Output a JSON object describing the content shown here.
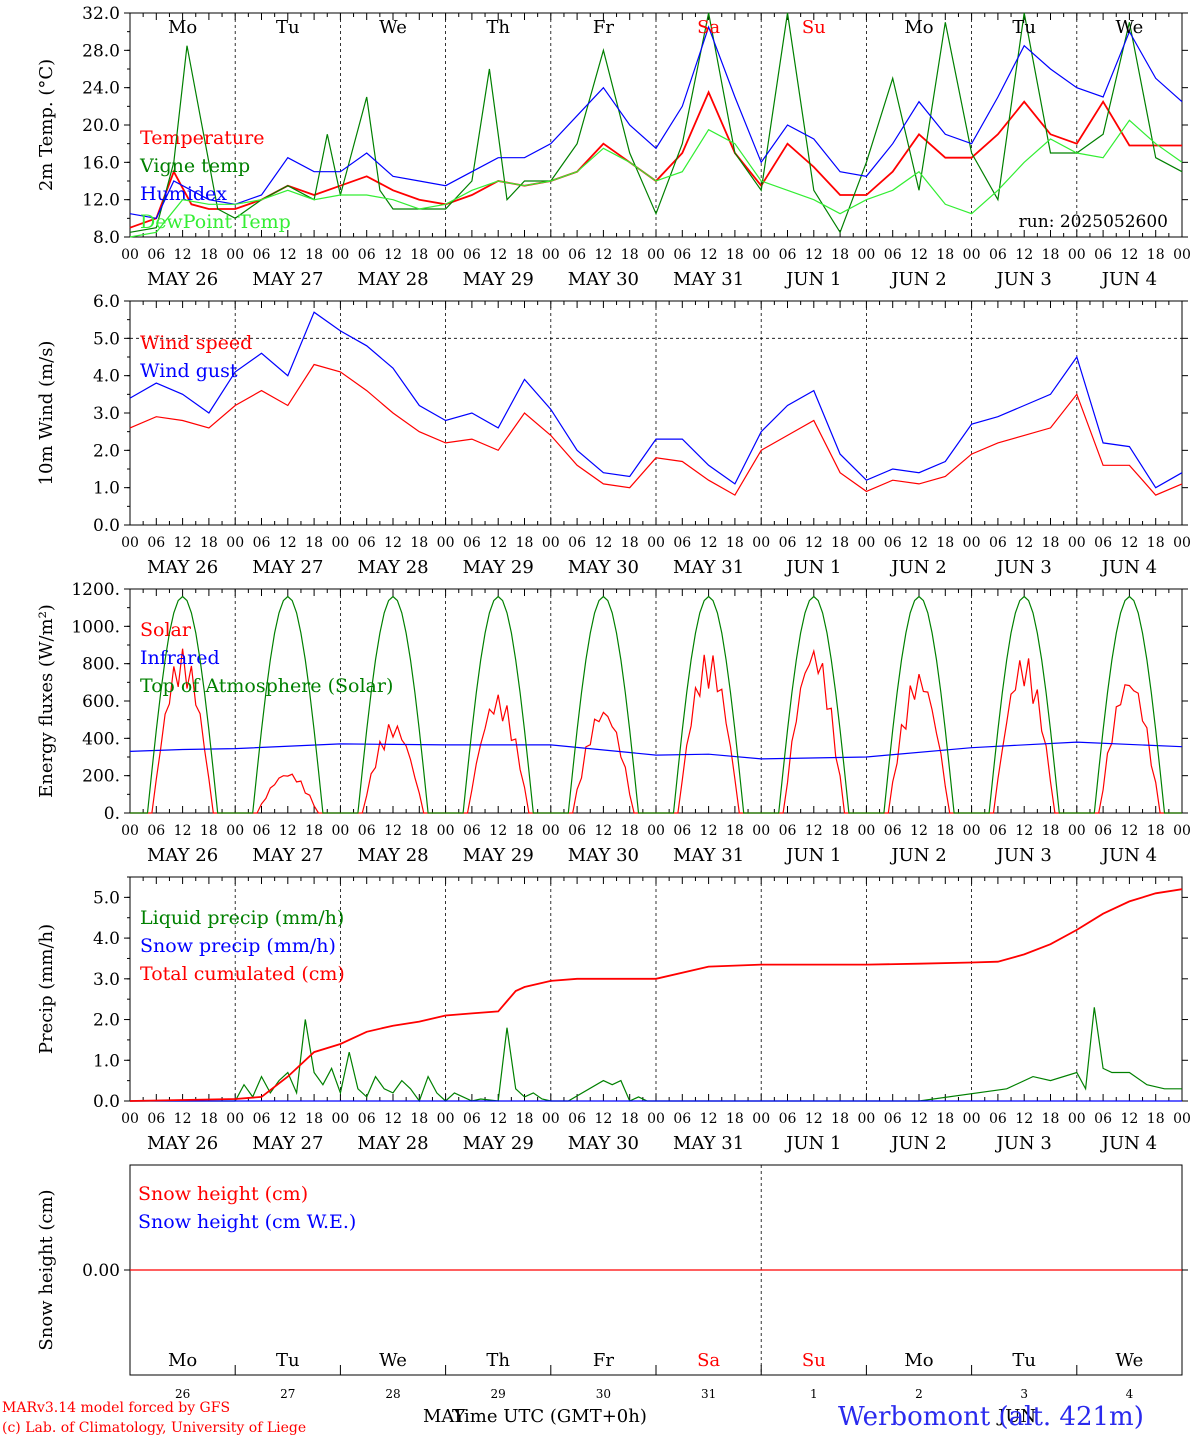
{
  "run_label": "run: 2025052600",
  "time_axis_title": "Time UTC (GMT+0h)",
  "station": "Werbomont (alt. 421m)",
  "credits": [
    "MARv3.14 model forced by GFS",
    "(c) Lab. of Climatology, University of Liege"
  ],
  "hour_ticks": [
    "00",
    "06",
    "12",
    "18"
  ],
  "date_labels": [
    "MAY 26",
    "MAY 27",
    "MAY 28",
    "MAY 29",
    "MAY 30",
    "MAY 31",
    "JUN  1",
    "JUN  2",
    "JUN  3",
    "JUN  4"
  ],
  "weekdays": [
    {
      "label": "Mo",
      "color": "#000000"
    },
    {
      "label": "Tu",
      "color": "#000000"
    },
    {
      "label": "We",
      "color": "#000000"
    },
    {
      "label": "Th",
      "color": "#000000"
    },
    {
      "label": "Fr",
      "color": "#000000"
    },
    {
      "label": "Sa",
      "color": "#ff0000"
    },
    {
      "label": "Su",
      "color": "#ff0000"
    },
    {
      "label": "Mo",
      "color": "#000000"
    },
    {
      "label": "Tu",
      "color": "#000000"
    },
    {
      "label": "We",
      "color": "#000000"
    }
  ],
  "day_numbers": [
    "26",
    "27",
    "28",
    "29",
    "30",
    "31",
    "1",
    "2",
    "3",
    "4"
  ],
  "month_labels": {
    "first": "MAY",
    "second": "JUN"
  },
  "chart_data": [
    {
      "type": "line",
      "id": "temperature",
      "ylabel": "2m Temp. (°C)",
      "ylim": [
        8,
        32
      ],
      "yticks": [
        "8.0",
        "12.0",
        "16.0",
        "20.0",
        "24.0",
        "28.0",
        "32.0"
      ],
      "x_unit": "hours since MAY 26 00 UTC",
      "series": [
        {
          "name": "Temperature",
          "color": "#ff0000",
          "x": [
            0,
            6,
            10,
            14,
            18,
            24,
            30,
            36,
            42,
            48,
            54,
            60,
            66,
            72,
            78,
            84,
            90,
            96,
            102,
            108,
            114,
            120,
            126,
            132,
            138,
            144,
            150,
            156,
            162,
            168,
            174,
            180,
            186,
            192,
            198,
            204,
            210,
            216,
            222,
            228,
            234,
            240
          ],
          "y": [
            9,
            10,
            15,
            11.5,
            11,
            11,
            12,
            13.5,
            12.5,
            13.5,
            14.5,
            13,
            12,
            11.5,
            12.5,
            14,
            13.5,
            14,
            15,
            18,
            16,
            14,
            17,
            23.5,
            17,
            13.5,
            18,
            15.5,
            12.5,
            12.5,
            15,
            19,
            16.5,
            16.5,
            19,
            22.5,
            19,
            18,
            22.5,
            17.8,
            17.8,
            17.8
          ]
        },
        {
          "name": "Vigne temp",
          "color": "#008000",
          "x": [
            0,
            6,
            10,
            13,
            16,
            20,
            24,
            30,
            36,
            42,
            45,
            48,
            54,
            57,
            60,
            66,
            72,
            78,
            82,
            86,
            90,
            96,
            102,
            108,
            114,
            120,
            126,
            132,
            138,
            144,
            150,
            156,
            162,
            168,
            174,
            180,
            186,
            192,
            198,
            204,
            210,
            216,
            222,
            228,
            234,
            240
          ],
          "y": [
            8.5,
            9,
            16,
            28.5,
            21,
            11,
            10,
            12,
            13.5,
            12,
            19,
            12.5,
            23,
            13,
            11,
            11,
            11,
            14,
            26,
            12,
            14,
            14,
            18,
            28,
            17,
            10.5,
            18,
            32,
            17,
            13,
            32,
            13,
            8.5,
            16,
            25,
            13,
            31,
            17,
            12,
            32,
            17,
            17,
            19,
            31,
            16.5,
            15
          ]
        },
        {
          "name": "Humidex",
          "color": "#0000ff",
          "x": [
            0,
            6,
            10,
            14,
            18,
            24,
            30,
            36,
            42,
            48,
            54,
            60,
            66,
            72,
            78,
            84,
            90,
            96,
            102,
            108,
            114,
            120,
            126,
            132,
            138,
            144,
            150,
            156,
            162,
            168,
            174,
            180,
            186,
            192,
            198,
            204,
            210,
            216,
            222,
            228,
            234,
            240
          ],
          "y": [
            10.5,
            10,
            14,
            13,
            12,
            11.5,
            12.5,
            16.5,
            15,
            15,
            17,
            14.5,
            14,
            13.5,
            15,
            16.5,
            16.5,
            18,
            21,
            24,
            20,
            17.5,
            22,
            30.5,
            23,
            16,
            20,
            18.5,
            15,
            14.5,
            18,
            22.5,
            19,
            18,
            23,
            28.5,
            26,
            24,
            23,
            30,
            25,
            22.5
          ]
        },
        {
          "name": "DewPoint Temp",
          "color": "#33ee33",
          "x": [
            0,
            6,
            12,
            18,
            24,
            30,
            36,
            42,
            48,
            54,
            60,
            66,
            72,
            78,
            84,
            90,
            96,
            102,
            108,
            114,
            120,
            126,
            132,
            138,
            144,
            150,
            156,
            162,
            168,
            174,
            180,
            186,
            192,
            198,
            204,
            210,
            216,
            222,
            228,
            234,
            240
          ],
          "y": [
            8,
            8.5,
            12,
            11.5,
            11.5,
            12,
            13,
            12,
            12.5,
            12.5,
            12,
            11,
            11.5,
            13,
            14,
            13.5,
            14,
            15,
            17.5,
            16,
            14,
            15,
            19.5,
            18,
            14,
            13,
            12,
            10.5,
            12,
            13,
            15,
            11.5,
            10.5,
            13,
            16,
            18.5,
            17,
            16.5,
            20.5,
            18,
            16
          ]
        }
      ]
    },
    {
      "type": "line",
      "id": "wind",
      "ylabel": "10m Wind (m/s)",
      "ylim": [
        0,
        6
      ],
      "yticks": [
        "0.0",
        "1.0",
        "2.0",
        "3.0",
        "4.0",
        "5.0",
        "6.0"
      ],
      "x_unit": "hours since MAY 26 00 UTC",
      "series": [
        {
          "name": "Wind speed",
          "color": "#ff0000",
          "x": [
            0,
            6,
            12,
            18,
            24,
            30,
            36,
            42,
            48,
            54,
            60,
            66,
            72,
            78,
            84,
            90,
            96,
            102,
            108,
            114,
            120,
            126,
            132,
            138,
            144,
            150,
            156,
            162,
            168,
            174,
            180,
            186,
            192,
            198,
            204,
            210,
            216,
            222,
            228,
            234,
            240
          ],
          "y": [
            2.6,
            2.9,
            2.8,
            2.6,
            3.2,
            3.6,
            3.2,
            4.3,
            4.1,
            3.6,
            3.0,
            2.5,
            2.2,
            2.3,
            2.0,
            3.0,
            2.4,
            1.6,
            1.1,
            1.0,
            1.8,
            1.7,
            1.2,
            0.8,
            2.0,
            2.4,
            2.8,
            1.4,
            0.9,
            1.2,
            1.1,
            1.3,
            1.9,
            2.2,
            2.4,
            2.6,
            3.5,
            1.6,
            1.6,
            0.8,
            1.1
          ]
        },
        {
          "name": "Wind gust",
          "color": "#0000ff",
          "x": [
            0,
            6,
            12,
            18,
            24,
            30,
            36,
            42,
            48,
            54,
            60,
            66,
            72,
            78,
            84,
            90,
            96,
            102,
            108,
            114,
            120,
            126,
            132,
            138,
            144,
            150,
            156,
            162,
            168,
            174,
            180,
            186,
            192,
            198,
            204,
            210,
            216,
            222,
            228,
            234,
            240
          ],
          "y": [
            3.4,
            3.8,
            3.5,
            3.0,
            4.1,
            4.6,
            4.0,
            5.7,
            5.2,
            4.8,
            4.2,
            3.2,
            2.8,
            3.0,
            2.6,
            3.9,
            3.1,
            2.0,
            1.4,
            1.3,
            2.3,
            2.3,
            1.6,
            1.1,
            2.5,
            3.2,
            3.6,
            1.9,
            1.2,
            1.5,
            1.4,
            1.7,
            2.7,
            2.9,
            3.2,
            3.5,
            4.5,
            2.2,
            2.1,
            1.0,
            1.4
          ]
        }
      ]
    },
    {
      "type": "line",
      "id": "energy",
      "ylabel": "Energy fluxes (W/m²)",
      "ylim": [
        0,
        1200
      ],
      "yticks": [
        "0.",
        "200.",
        "400.",
        "600.",
        "800.",
        "1000.",
        "1200."
      ],
      "x_unit": "hours since MAY 26 00 UTC",
      "toa_peak": 1160,
      "solar_peaks": [
        880,
        220,
        490,
        640,
        570,
        870,
        900,
        760,
        850,
        740
      ],
      "series": [
        {
          "name": "Solar",
          "color": "#ff0000"
        },
        {
          "name": "Infrared",
          "color": "#0000ff",
          "x": [
            0,
            12,
            24,
            48,
            72,
            96,
            120,
            132,
            144,
            168,
            192,
            216,
            240
          ],
          "y": [
            330,
            340,
            345,
            370,
            365,
            365,
            310,
            315,
            290,
            300,
            350,
            380,
            355
          ]
        },
        {
          "name": "Top of Atmosphere (Solar)",
          "color": "#008000"
        }
      ]
    },
    {
      "type": "line",
      "id": "precip",
      "ylabel": "Precip (mm/h)",
      "ylim": [
        0,
        5.5
      ],
      "yticks": [
        "0.0",
        "1.0",
        "2.0",
        "3.0",
        "4.0",
        "5.0"
      ],
      "x_unit": "hours since MAY 26 00 UTC",
      "series": [
        {
          "name": "Liquid precip (mm/h)",
          "color": "#008000",
          "x": [
            0,
            24,
            26,
            28,
            30,
            32,
            34,
            36,
            38,
            40,
            42,
            44,
            46,
            48,
            50,
            52,
            54,
            56,
            58,
            60,
            62,
            64,
            66,
            68,
            70,
            72,
            74,
            76,
            78,
            80,
            84,
            86,
            88,
            90,
            92,
            94,
            96,
            100,
            108,
            110,
            112,
            114,
            116,
            118,
            120,
            130,
            140,
            150,
            160,
            170,
            180,
            200,
            206,
            210,
            216,
            218,
            220,
            222,
            224,
            228,
            232,
            236,
            240
          ],
          "y": [
            0,
            0,
            0.4,
            0.1,
            0.6,
            0.2,
            0.5,
            0.7,
            0.2,
            2.0,
            0.7,
            0.4,
            0.8,
            0.2,
            1.2,
            0.3,
            0.1,
            0.6,
            0.3,
            0.2,
            0.5,
            0.3,
            0,
            0.6,
            0.2,
            0,
            0.2,
            0.1,
            0,
            0.05,
            0,
            1.8,
            0.3,
            0.1,
            0.2,
            0.05,
            0,
            0,
            0.5,
            0.4,
            0.5,
            0,
            0.1,
            0,
            0,
            0,
            0,
            0,
            0,
            0,
            0,
            0.3,
            0.6,
            0.5,
            0.7,
            0.3,
            2.3,
            0.8,
            0.7,
            0.7,
            0.4,
            0.3,
            0.3
          ]
        },
        {
          "name": "Snow precip (mm/h)",
          "color": "#0000ff",
          "x": [
            0,
            240
          ],
          "y": [
            0,
            0
          ]
        },
        {
          "name": "Total cumulated (cm)",
          "color": "#ff0000",
          "x": [
            0,
            24,
            30,
            36,
            42,
            48,
            54,
            60,
            66,
            72,
            78,
            84,
            88,
            90,
            96,
            102,
            108,
            114,
            120,
            132,
            144,
            156,
            168,
            180,
            192,
            198,
            204,
            210,
            216,
            222,
            228,
            234,
            240
          ],
          "y": [
            0,
            0.05,
            0.1,
            0.6,
            1.2,
            1.4,
            1.7,
            1.85,
            1.95,
            2.1,
            2.15,
            2.2,
            2.7,
            2.8,
            2.95,
            3.0,
            3.0,
            3.0,
            3.0,
            3.3,
            3.35,
            3.35,
            3.35,
            3.37,
            3.4,
            3.42,
            3.6,
            3.85,
            4.2,
            4.6,
            4.9,
            5.1,
            5.2
          ]
        }
      ]
    },
    {
      "type": "line",
      "id": "snow",
      "ylabel": "Snow height (cm)",
      "ylim": [
        -1,
        1
      ],
      "yticks": [
        "0.00"
      ],
      "x_unit": "hours since MAY 26 00 UTC",
      "series": [
        {
          "name": "Snow height (cm)",
          "color": "#ff0000",
          "x": [
            0,
            240
          ],
          "y": [
            0,
            0
          ]
        },
        {
          "name": "Snow height (cm W.E.)",
          "color": "#0000ff"
        }
      ]
    }
  ]
}
